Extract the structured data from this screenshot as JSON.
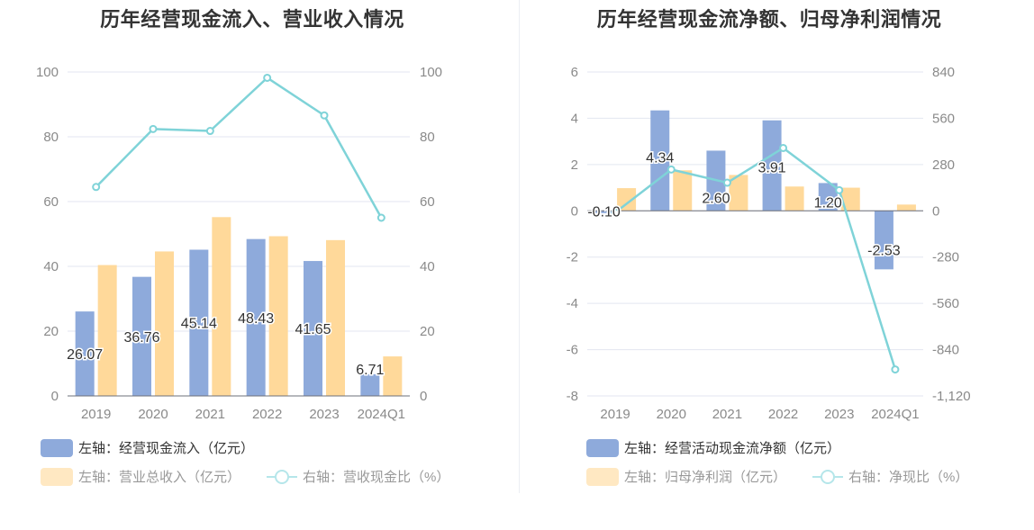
{
  "charts": [
    {
      "title": "历年经营现金流入、营业收入情况",
      "legend": [
        "左轴：经营现金流入（亿元）",
        "左轴：营业总收入（亿元）",
        "右轴：营收现金比（%）"
      ]
    },
    {
      "title": "历年经营现金流净额、归母净利润情况",
      "legend": [
        "左轴：经营活动现金流净额（亿元）",
        "左轴：归母净利润（亿元）",
        "右轴：净现比（%）"
      ]
    }
  ],
  "colors": {
    "bar_primary": "#8eaadb",
    "bar_secondary": "#ffd99a",
    "line": "#7fd3d8",
    "grid": "#e3e6f0",
    "axis_text": "#8a8a8a"
  },
  "chart_data": [
    {
      "type": "bar",
      "categories": [
        "2019",
        "2020",
        "2021",
        "2022",
        "2023",
        "2024Q1"
      ],
      "left_axis": {
        "ylim": [
          0,
          100
        ],
        "ticks": [
          "0",
          "20",
          "40",
          "60",
          "80",
          "100"
        ]
      },
      "right_axis": {
        "ylim": [
          0,
          100
        ],
        "ticks": [
          "0",
          "20",
          "40",
          "60",
          "80",
          "100"
        ]
      },
      "series": [
        {
          "name": "左轴：经营现金流入（亿元）",
          "type": "bar",
          "axis": "left",
          "values": [
            26.07,
            36.76,
            45.14,
            48.43,
            41.65,
            6.71
          ],
          "labels": [
            "26.07",
            "36.76",
            "45.14",
            "48.43",
            "41.65",
            "6.71"
          ]
        },
        {
          "name": "左轴：营业总收入（亿元）",
          "type": "bar",
          "axis": "left",
          "values": [
            40.4,
            44.6,
            55.2,
            49.3,
            48.1,
            12.2
          ]
        },
        {
          "name": "右轴：营收现金比（%）",
          "type": "line",
          "axis": "right",
          "values": [
            64.5,
            82.4,
            81.8,
            98.2,
            86.6,
            55.0
          ]
        }
      ],
      "grid": true,
      "legend_position": "bottom-left"
    },
    {
      "type": "bar",
      "categories": [
        "2019",
        "2020",
        "2021",
        "2022",
        "2023",
        "2024Q1"
      ],
      "left_axis": {
        "ylim": [
          -8,
          6
        ],
        "ticks": [
          "-8",
          "-6",
          "-4",
          "-2",
          "0",
          "2",
          "4",
          "6"
        ]
      },
      "right_axis": {
        "ylim": [
          -1120,
          840
        ],
        "ticks": [
          "-1,120",
          "-840",
          "-560",
          "-280",
          "0",
          "280",
          "560",
          "840"
        ]
      },
      "series": [
        {
          "name": "左轴：经营活动现金流净额（亿元）",
          "type": "bar",
          "axis": "left",
          "values": [
            -0.1,
            4.34,
            2.6,
            3.91,
            1.2,
            -2.53
          ],
          "labels": [
            "-0.10",
            "4.34",
            "2.60",
            "3.91",
            "1.20",
            "-2.53"
          ]
        },
        {
          "name": "左轴：归母净利润（亿元）",
          "type": "bar",
          "axis": "left",
          "values": [
            0.98,
            1.75,
            1.55,
            1.05,
            1.0,
            0.27
          ]
        },
        {
          "name": "右轴：净现比（%）",
          "type": "line",
          "axis": "right",
          "values": [
            -10,
            250,
            170,
            380,
            125,
            -960
          ]
        }
      ],
      "grid": true,
      "legend_position": "bottom-left"
    }
  ]
}
